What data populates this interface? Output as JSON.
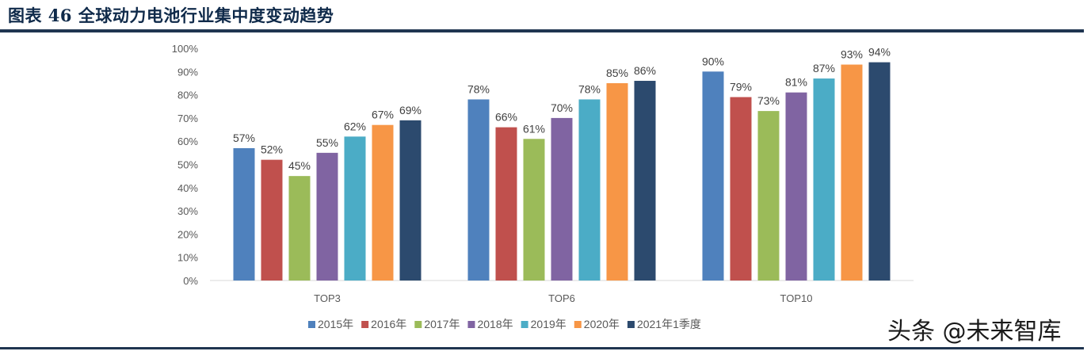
{
  "header": {
    "title": "图表 46 全球动力电池行业集中度变动趋势"
  },
  "watermark": "头条 @未来智库",
  "chart_data": {
    "type": "bar",
    "title": "",
    "xlabel": "",
    "ylabel": "",
    "ylim": [
      0,
      100
    ],
    "y_ticks": [
      "0%",
      "10%",
      "20%",
      "30%",
      "40%",
      "50%",
      "60%",
      "70%",
      "80%",
      "90%",
      "100%"
    ],
    "grid": false,
    "legend_position": "bottom",
    "categories": [
      "TOP3",
      "TOP6",
      "TOP10"
    ],
    "series": [
      {
        "name": "2015年",
        "color": "#4f81bd",
        "values": [
          57,
          78,
          90
        ]
      },
      {
        "name": "2016年",
        "color": "#c0504d",
        "values": [
          52,
          66,
          79
        ]
      },
      {
        "name": "2017年",
        "color": "#9bbb59",
        "values": [
          45,
          61,
          73
        ]
      },
      {
        "name": "2018年",
        "color": "#8064a2",
        "values": [
          55,
          70,
          81
        ]
      },
      {
        "name": "2019年",
        "color": "#4bacc6",
        "values": [
          62,
          78,
          87
        ]
      },
      {
        "name": "2020年",
        "color": "#f79646",
        "values": [
          67,
          85,
          93
        ]
      },
      {
        "name": "2021年1季度",
        "color": "#2c4a6e",
        "values": [
          69,
          86,
          94
        ]
      }
    ],
    "value_suffix": "%"
  }
}
